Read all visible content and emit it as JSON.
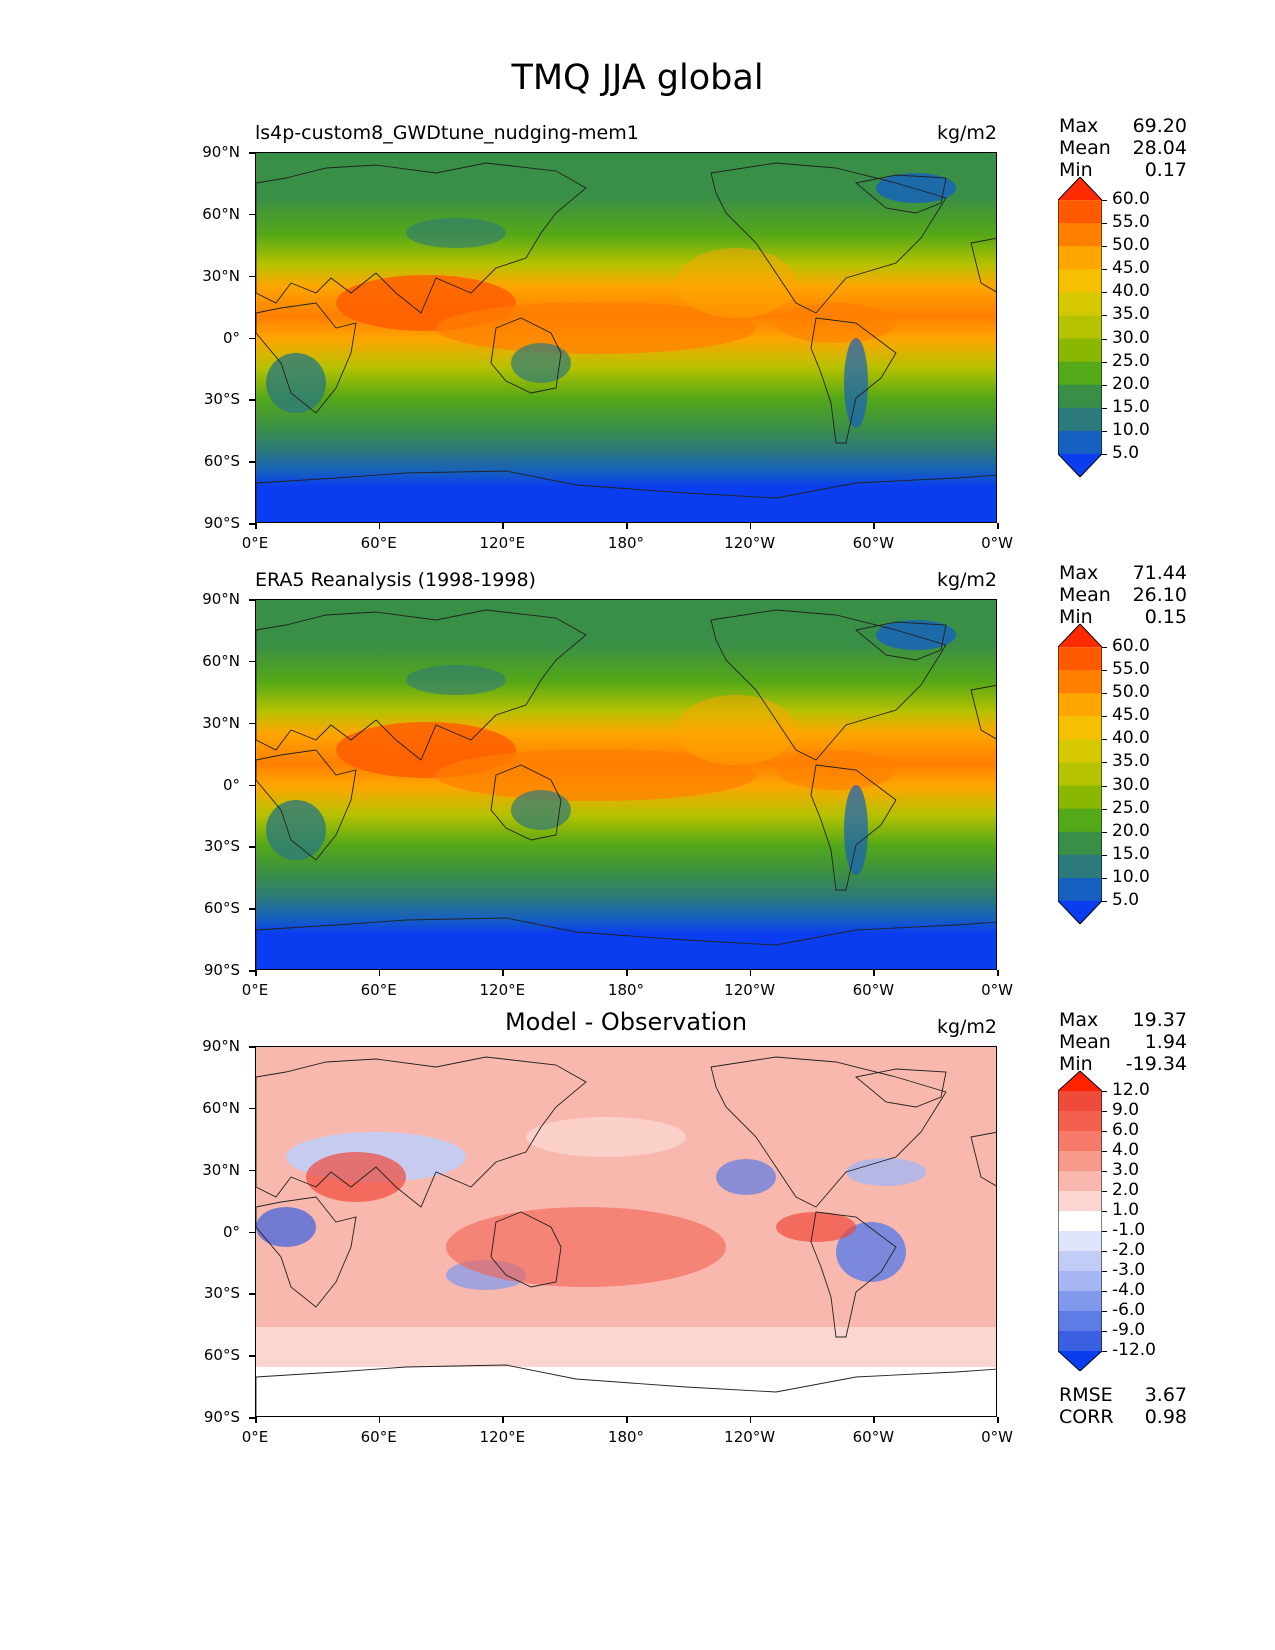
{
  "figure": {
    "title": "TMQ JJA global",
    "lat_labels": [
      "90°N",
      "60°N",
      "30°N",
      "0°",
      "30°S",
      "60°S",
      "90°S"
    ],
    "lon_labels": [
      "0°E",
      "60°E",
      "120°E",
      "180°",
      "120°W",
      "60°W",
      "0°W"
    ]
  },
  "panels": [
    {
      "id": "model",
      "left_title": "ls4p-custom8_GWDtune_nudging-mem1",
      "center_title": "",
      "units": "kg/m2",
      "stats": [
        {
          "label": "Max",
          "value": "69.20"
        },
        {
          "label": "Mean",
          "value": "28.04"
        },
        {
          "label": "Min",
          "value": "0.17"
        }
      ],
      "footer_stats": [],
      "colorbar": {
        "labels": [
          "60.0",
          "55.0",
          "50.0",
          "45.0",
          "40.0",
          "35.0",
          "30.0",
          "25.0",
          "20.0",
          "15.0",
          "10.0",
          "5.0"
        ],
        "colors": [
          "#ff2a00",
          "#ff5a00",
          "#ff7f00",
          "#ffa500",
          "#f5c000",
          "#d6c800",
          "#b5c200",
          "#8ab800",
          "#55a817",
          "#3a8f46",
          "#2d7a7a",
          "#1560c0",
          "#0a3cf0"
        ]
      }
    },
    {
      "id": "obs",
      "left_title": "ERA5 Reanalysis (1998-1998)",
      "center_title": "",
      "units": "kg/m2",
      "stats": [
        {
          "label": "Max",
          "value": "71.44"
        },
        {
          "label": "Mean",
          "value": "26.10"
        },
        {
          "label": "Min",
          "value": "0.15"
        }
      ],
      "footer_stats": [],
      "colorbar": {
        "labels": [
          "60.0",
          "55.0",
          "50.0",
          "45.0",
          "40.0",
          "35.0",
          "30.0",
          "25.0",
          "20.0",
          "15.0",
          "10.0",
          "5.0"
        ],
        "colors": [
          "#ff2a00",
          "#ff5a00",
          "#ff7f00",
          "#ffa500",
          "#f5c000",
          "#d6c800",
          "#b5c200",
          "#8ab800",
          "#55a817",
          "#3a8f46",
          "#2d7a7a",
          "#1560c0",
          "#0a3cf0"
        ]
      }
    },
    {
      "id": "diff",
      "left_title": "",
      "center_title": "Model - Observation",
      "units": "kg/m2",
      "stats": [
        {
          "label": "Max",
          "value": "19.37"
        },
        {
          "label": "Mean",
          "value": "1.94"
        },
        {
          "label": "Min",
          "value": "-19.34"
        }
      ],
      "footer_stats": [
        {
          "label": "RMSE",
          "value": "3.67"
        },
        {
          "label": "CORR",
          "value": "0.98"
        }
      ],
      "colorbar": {
        "labels": [
          "12.0",
          "9.0",
          "6.0",
          "4.0",
          "3.0",
          "2.0",
          "1.0",
          "-1.0",
          "-2.0",
          "-3.0",
          "-4.0",
          "-6.0",
          "-9.0",
          "-12.0"
        ],
        "colors": [
          "#ff2200",
          "#f04a3a",
          "#f36050",
          "#f57a6a",
          "#f79a8c",
          "#f9b8ae",
          "#fbd6d0",
          "#ffffff",
          "#dfe5fb",
          "#c2cdf7",
          "#a6b6f3",
          "#8099ec",
          "#5d7ce6",
          "#3a5fe0",
          "#0a3cf0"
        ]
      }
    }
  ]
}
